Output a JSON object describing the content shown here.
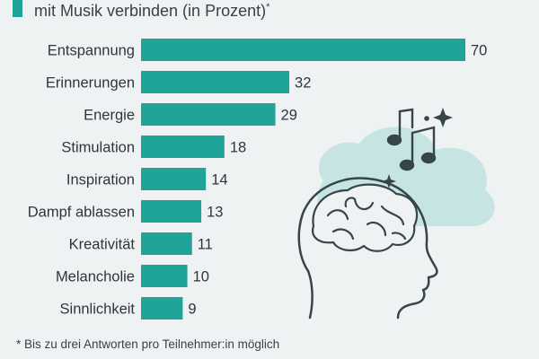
{
  "header": {
    "subtitle": "mit Musik verbinden (in Prozent)",
    "subtitle_mark": "*"
  },
  "footer": {
    "footnote": "* Bis zu drei Antworten pro Teilnehmer:in möglich",
    "source": ""
  },
  "colors": {
    "bar": "#1fa39a",
    "background": "#eef2f3",
    "illustration_cloud": "#c6e4e2",
    "illustration_line": "#36454a"
  },
  "illustration": {
    "icons": [
      "head-silhouette-icon",
      "brain-icon",
      "music-note-icon",
      "sparkle-icon"
    ]
  },
  "chart_data": {
    "type": "bar",
    "orientation": "horizontal",
    "categories": [
      "Entspannung",
      "Erinnerungen",
      "Energie",
      "Stimulation",
      "Inspiration",
      "Dampf ablassen",
      "Kreativität",
      "Melancholie",
      "Sinnlichkeit"
    ],
    "values": [
      70,
      32,
      29,
      18,
      14,
      13,
      11,
      10,
      9
    ],
    "unit": "%",
    "xlim": [
      0,
      70
    ],
    "grid": false,
    "legend": "none"
  }
}
